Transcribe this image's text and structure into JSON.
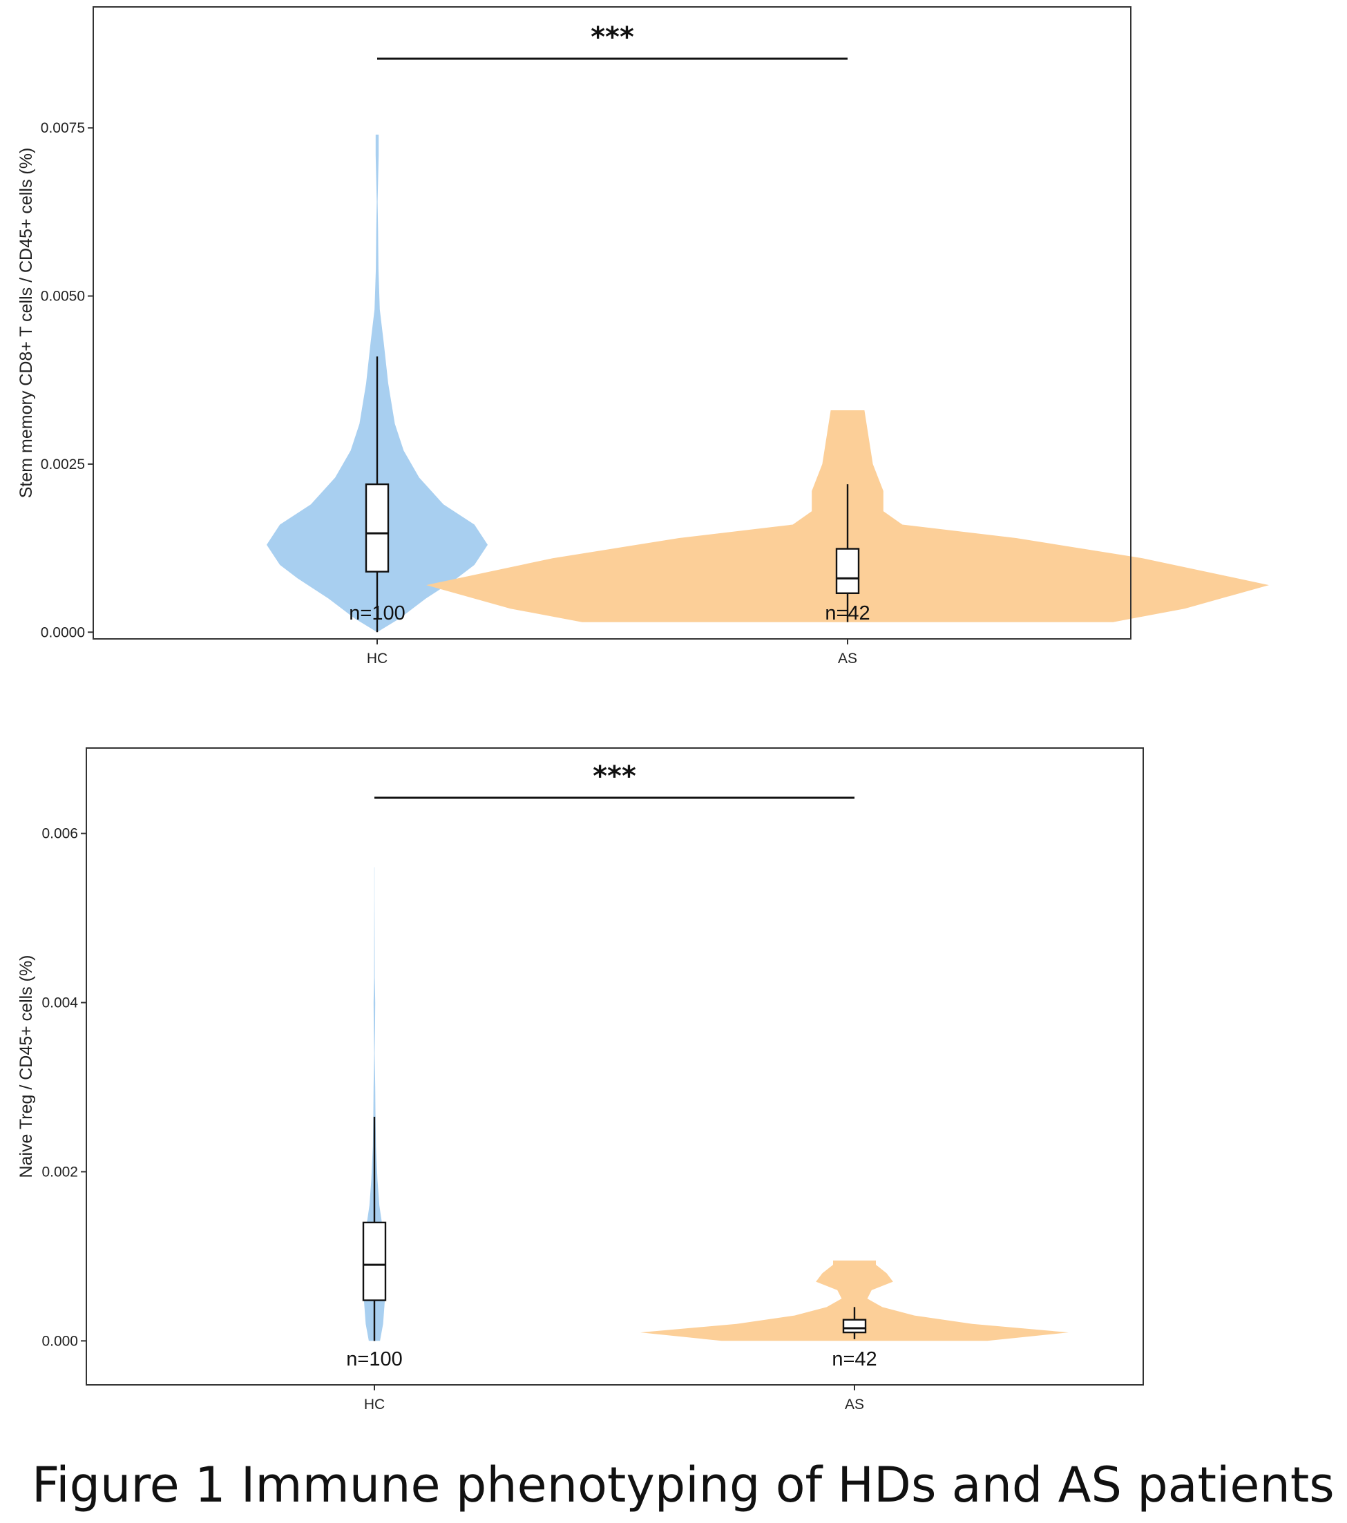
{
  "caption": "Figure 1 Immune phenotyping of HDs and AS patients",
  "colors": {
    "HC": "#a8cff0",
    "AS": "#fccf98",
    "frame": "#333333"
  },
  "chart_data": [
    {
      "type": "violin",
      "ylabel": "Stem memory CD8+ T cells / CD45+ cells (%)",
      "ylim": [
        -0.0001,
        0.0093
      ],
      "yticks": [
        "0.0000",
        "0.0025",
        "0.0050",
        "0.0075"
      ],
      "significance": "***",
      "grid": false,
      "categories": [
        "HC",
        "AS"
      ],
      "series": [
        {
          "category": "HC",
          "n_label": "n=100",
          "box": {
            "q1": 0.0009,
            "median": 0.00147,
            "q3": 0.0022,
            "whisker_low": 0.0,
            "whisker_high": 0.0041
          },
          "density": [
            [
              0.0,
              0.0
            ],
            [
              0.0002,
              0.1
            ],
            [
              0.0005,
              0.22
            ],
            [
              0.0008,
              0.36
            ],
            [
              0.001,
              0.44
            ],
            [
              0.0013,
              0.5
            ],
            [
              0.0016,
              0.44
            ],
            [
              0.0019,
              0.3
            ],
            [
              0.0023,
              0.19
            ],
            [
              0.0027,
              0.12
            ],
            [
              0.0031,
              0.08
            ],
            [
              0.0037,
              0.05
            ],
            [
              0.0043,
              0.03
            ],
            [
              0.0048,
              0.012
            ],
            [
              0.0054,
              0.006
            ],
            [
              0.006,
              0.004
            ],
            [
              0.0064,
              0.002
            ],
            [
              0.0067,
              0.004
            ],
            [
              0.0071,
              0.007
            ],
            [
              0.0074,
              0.007
            ]
          ]
        },
        {
          "category": "AS",
          "n_label": "n=42",
          "box": {
            "q1": 0.00058,
            "median": 0.0008,
            "q3": 0.00124,
            "whisker_low": 0.00015,
            "whisker_high": 0.0022
          },
          "density": [
            [
              0.00015,
              0.63
            ],
            [
              0.00035,
              0.8
            ],
            [
              0.0007,
              1.0
            ],
            [
              0.0011,
              0.7
            ],
            [
              0.0014,
              0.4
            ],
            [
              0.0016,
              0.13
            ],
            [
              0.0018,
              0.085
            ],
            [
              0.0021,
              0.085
            ],
            [
              0.0025,
              0.06
            ],
            [
              0.0029,
              0.05
            ],
            [
              0.0033,
              0.04
            ]
          ]
        }
      ]
    },
    {
      "type": "violin",
      "ylabel": "Naive Treg / CD45+ cells (%)",
      "ylim": [
        -0.00052,
        0.00701
      ],
      "yticks": [
        "0.000",
        "0.002",
        "0.004",
        "0.006"
      ],
      "significance": "***",
      "grid": false,
      "categories": [
        "HC",
        "AS"
      ],
      "series": [
        {
          "category": "HC",
          "n_label": "n=100",
          "box": {
            "q1": 0.00048,
            "median": 0.0009,
            "q3": 0.0014,
            "whisker_low": 0.0,
            "whisker_high": 0.00265
          },
          "density": [
            [
              0.0,
              0.09
            ],
            [
              0.0002,
              0.14
            ],
            [
              0.0005,
              0.17
            ],
            [
              0.0009,
              0.18
            ],
            [
              0.0013,
              0.14
            ],
            [
              0.0016,
              0.08
            ],
            [
              0.0019,
              0.05
            ],
            [
              0.0023,
              0.025
            ],
            [
              0.0027,
              0.017
            ],
            [
              0.003,
              0.013
            ],
            [
              0.0034,
              0.004
            ],
            [
              0.0037,
              0.01
            ],
            [
              0.004,
              0.013
            ],
            [
              0.0043,
              0.006
            ],
            [
              0.0047,
              0.004
            ],
            [
              0.0052,
              0.002
            ],
            [
              0.0056,
              0.002
            ]
          ]
        },
        {
          "category": "AS",
          "n_label": "n=42",
          "box": {
            "q1": 0.0001,
            "median": 0.00015,
            "q3": 0.00025,
            "whisker_low": 2e-05,
            "whisker_high": 0.0004
          },
          "density": [
            [
              0.0,
              0.62
            ],
            [
              0.0001,
              1.0
            ],
            [
              0.0002,
              0.55
            ],
            [
              0.0003,
              0.28
            ],
            [
              0.0004,
              0.13
            ],
            [
              0.0005,
              0.06
            ],
            [
              0.0006,
              0.08
            ],
            [
              0.0007,
              0.18
            ],
            [
              0.0008,
              0.15
            ],
            [
              0.0009,
              0.1
            ],
            [
              0.00095,
              0.1
            ]
          ]
        }
      ]
    }
  ]
}
